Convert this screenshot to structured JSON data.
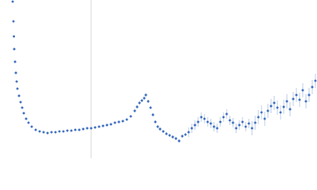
{
  "chart_data": {
    "type": "scatter",
    "color": "#3f6fbf",
    "grid": true,
    "xlim": [
      0,
      400
    ],
    "ylim": [
      0,
      200
    ],
    "xticks": [
      115
    ],
    "x": [
      16,
      17,
      17.5,
      18,
      19,
      20,
      21,
      22,
      24,
      26,
      28,
      30,
      33,
      36,
      40,
      45,
      50,
      55,
      60,
      65,
      70,
      75,
      80,
      85,
      90,
      95,
      100,
      105,
      110,
      115,
      120,
      125,
      130,
      135,
      140,
      145,
      150,
      155,
      160,
      165,
      170,
      173,
      176,
      179,
      182,
      184,
      187,
      190,
      193,
      196,
      199,
      202,
      206,
      210,
      214,
      218,
      222,
      226,
      230,
      234,
      238,
      242,
      246,
      250,
      254,
      258,
      262,
      266,
      270,
      274,
      278,
      282,
      286,
      290,
      294,
      298,
      302,
      306,
      310,
      314,
      318,
      322,
      326,
      330,
      334,
      338,
      342,
      346,
      350,
      354,
      358,
      362,
      366,
      370,
      374,
      378,
      382,
      386,
      390,
      394,
      398
    ],
    "values": [
      198,
      173,
      154,
      138,
      122,
      108,
      97,
      88,
      79,
      71,
      64,
      57,
      50,
      45,
      40,
      36,
      34,
      33,
      32,
      33,
      33,
      34,
      34,
      35,
      35,
      36,
      36,
      37,
      38,
      38,
      39,
      40,
      41,
      42,
      43,
      45,
      46,
      47,
      49,
      53,
      60,
      65,
      70,
      73,
      76,
      80,
      72,
      64,
      55,
      46,
      40,
      37,
      34,
      31,
      29,
      27,
      25,
      22,
      28,
      30,
      33,
      38,
      42,
      46,
      52,
      50,
      46,
      44,
      40,
      38,
      46,
      52,
      56,
      48,
      45,
      38,
      42,
      46,
      40,
      44,
      38,
      45,
      52,
      58,
      50,
      60,
      66,
      70,
      64,
      58,
      65,
      72,
      62,
      75,
      80,
      74,
      86,
      72,
      80,
      90,
      98
    ],
    "errors": [
      1,
      1,
      1,
      1,
      1,
      1,
      1,
      1,
      1,
      1,
      1,
      1,
      1,
      1,
      1,
      1,
      1,
      1,
      1,
      1,
      1,
      1,
      1,
      1,
      1,
      1,
      1,
      1,
      1,
      1,
      1,
      1,
      1,
      1,
      1,
      1,
      1,
      1,
      1,
      1,
      2,
      2,
      2,
      2,
      2,
      2,
      2,
      2,
      2,
      2,
      2,
      2,
      2,
      2,
      2,
      2,
      2,
      2,
      2,
      2,
      6,
      6,
      6,
      6,
      6,
      6,
      6,
      6,
      6,
      6,
      6,
      6,
      6,
      6,
      6,
      6,
      6,
      6,
      6,
      6,
      9,
      9,
      9,
      9,
      9,
      9,
      9,
      9,
      9,
      9,
      9,
      9,
      9,
      9,
      9,
      9,
      9,
      9,
      9,
      9,
      9
    ]
  }
}
